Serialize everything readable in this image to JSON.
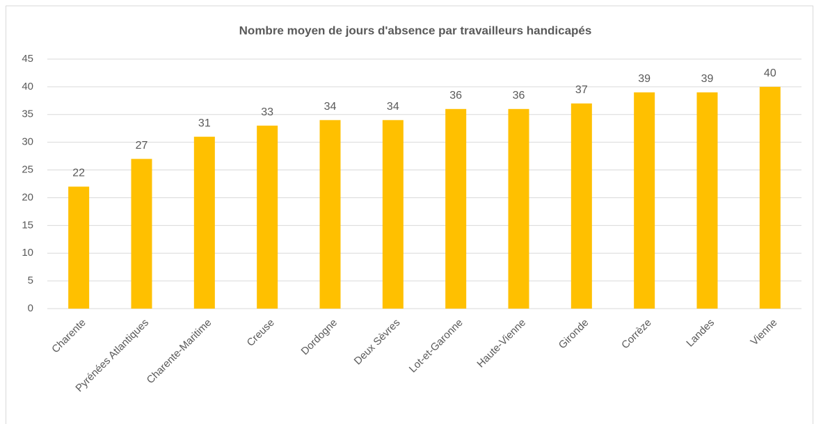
{
  "chart_data": {
    "type": "bar",
    "title": "Nombre moyen de jours d'absence par travailleurs handicapés",
    "categories": [
      "Charente",
      "Pyrénées Atlantiques",
      "Charente-Maritime",
      "Creuse",
      "Dordogne",
      "Deux Sèvres",
      "Lot-et-Garonne",
      "Haute-Vienne",
      "Gironde",
      "Corrèze",
      "Landes",
      "Vienne"
    ],
    "values": [
      22,
      27,
      31,
      33,
      34,
      34,
      36,
      36,
      37,
      39,
      39,
      40
    ],
    "color": "#ffc000",
    "ylim": [
      0,
      45
    ],
    "yticks": [
      0,
      5,
      10,
      15,
      20,
      25,
      30,
      35,
      40,
      45
    ],
    "grid": true
  }
}
